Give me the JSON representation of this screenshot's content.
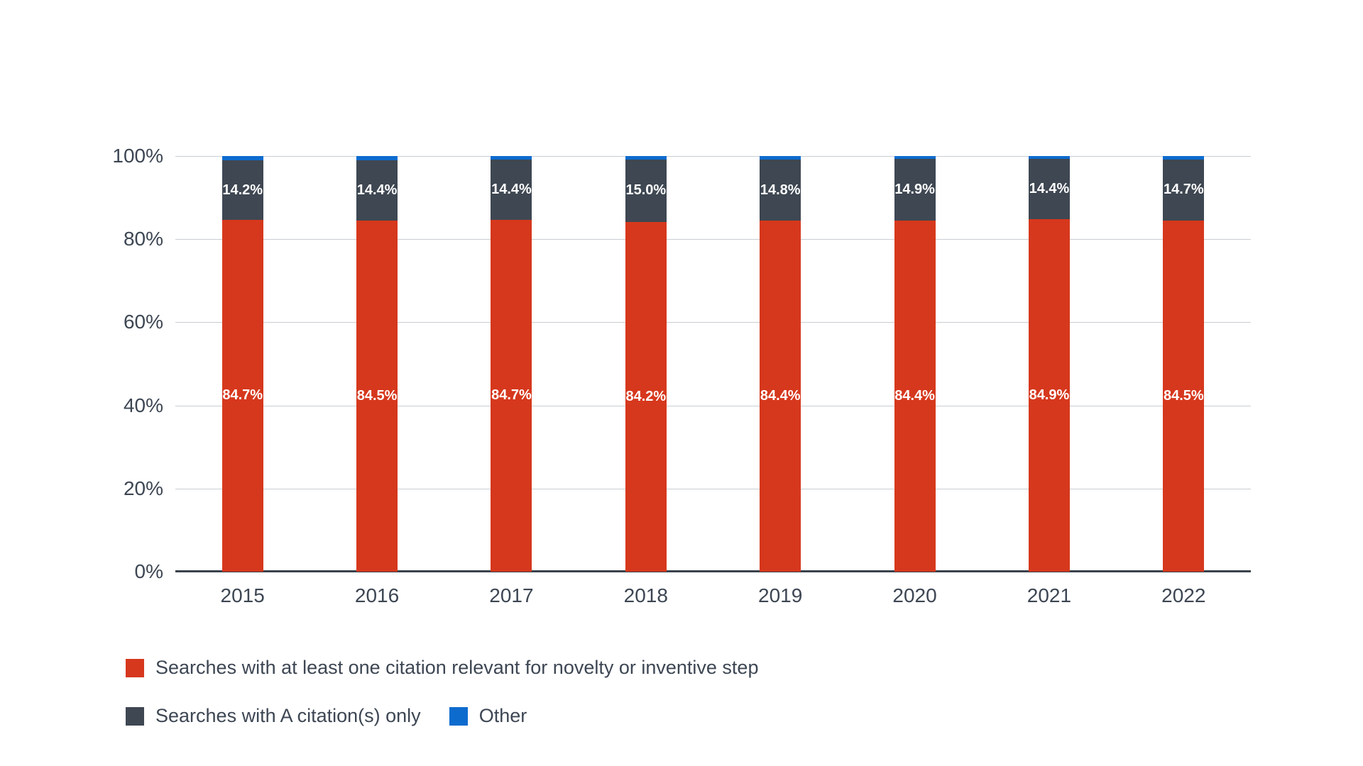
{
  "chart_data": {
    "type": "bar",
    "stacked": true,
    "title": "",
    "categories": [
      "2015",
      "2016",
      "2017",
      "2018",
      "2019",
      "2020",
      "2021",
      "2022"
    ],
    "series": [
      {
        "name": "Searches with at least one citation relevant for novelty or inventive step",
        "color": "#d6381d",
        "values": [
          84.7,
          84.5,
          84.7,
          84.2,
          84.4,
          84.4,
          84.9,
          84.5
        ],
        "labels": [
          "84.7%",
          "84.5%",
          "84.7%",
          "84.2%",
          "84.4%",
          "84.4%",
          "84.9%",
          "84.5%"
        ],
        "show_labels": true
      },
      {
        "name": "Searches with A citation(s) only",
        "color": "#3e4752",
        "values": [
          14.2,
          14.4,
          14.4,
          15.0,
          14.8,
          14.9,
          14.4,
          14.7
        ],
        "labels": [
          "14.2%",
          "14.4%",
          "14.4%",
          "15.0%",
          "14.8%",
          "14.9%",
          "14.4%",
          "14.7%"
        ],
        "show_labels": true
      },
      {
        "name": "Other",
        "color": "#0d6bce",
        "values": [
          1.1,
          1.1,
          0.9,
          0.8,
          0.8,
          0.7,
          0.7,
          0.8
        ],
        "labels": [],
        "show_labels": false
      }
    ],
    "xlabel": "",
    "ylabel": "",
    "ylim": [
      0,
      100
    ],
    "y_ticks": [
      {
        "value": 0,
        "label": "0%"
      },
      {
        "value": 20,
        "label": "20%"
      },
      {
        "value": 40,
        "label": "40%"
      },
      {
        "value": 60,
        "label": "60%"
      },
      {
        "value": 80,
        "label": "80%"
      },
      {
        "value": 100,
        "label": "100%"
      }
    ],
    "grid": true,
    "legend_position": "bottom",
    "legend_rows": [
      [
        0
      ],
      [
        1,
        2
      ]
    ]
  },
  "colors": {
    "axis_text": "#3d4653",
    "gridline": "#c9cdd2",
    "axis_line": "#3a424b",
    "bar_label_text": "#ffffff",
    "background": "#ffffff"
  }
}
